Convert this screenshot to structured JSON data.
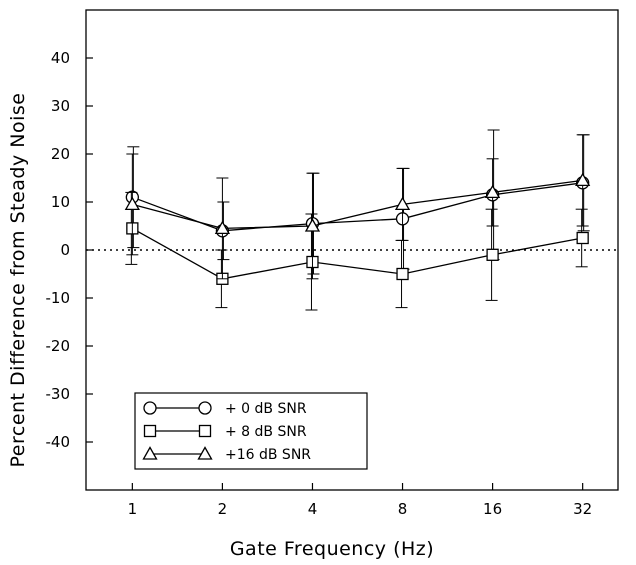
{
  "chart_data": {
    "type": "line",
    "title": "",
    "xlabel": "Gate Frequency (Hz)",
    "ylabel": "Percent Difference from Steady Noise",
    "x_scale": "log2",
    "x": [
      1,
      2,
      4,
      8,
      16,
      32
    ],
    "x_tick_labels": [
      "1",
      "2",
      "4",
      "8",
      "16",
      "32"
    ],
    "xlim": [
      0.7,
      42
    ],
    "ylim": [
      -50,
      50
    ],
    "y_ticks": [
      -40,
      -30,
      -20,
      -10,
      0,
      10,
      20,
      30,
      40
    ],
    "y_tick_labels": [
      "-40",
      "-30",
      "-20",
      "-10",
      "0",
      "10",
      "20",
      "30",
      "40"
    ],
    "reference_line": {
      "y": 0,
      "style": "dotted"
    },
    "grid": false,
    "legend_position": "bottom-left",
    "series": [
      {
        "name": "+ 0 dB SNR",
        "marker": "circle",
        "values": [
          11,
          4,
          5.5,
          6.5,
          11.5,
          14
        ],
        "error": [
          10.5,
          6,
          10.5,
          10.5,
          13.5,
          10
        ]
      },
      {
        "name": "+ 8 dB SNR",
        "marker": "square",
        "values": [
          4.5,
          -6,
          -2.5,
          -5,
          -1,
          2.5
        ],
        "error": [
          7.5,
          6,
          10,
          7,
          9.5,
          6
        ]
      },
      {
        "name": "+16 dB SNR",
        "marker": "triangle",
        "values": [
          9.5,
          4.5,
          5,
          9.5,
          12,
          14.5
        ],
        "error": [
          10.5,
          10.5,
          11,
          7.5,
          7,
          9.5
        ]
      }
    ]
  }
}
